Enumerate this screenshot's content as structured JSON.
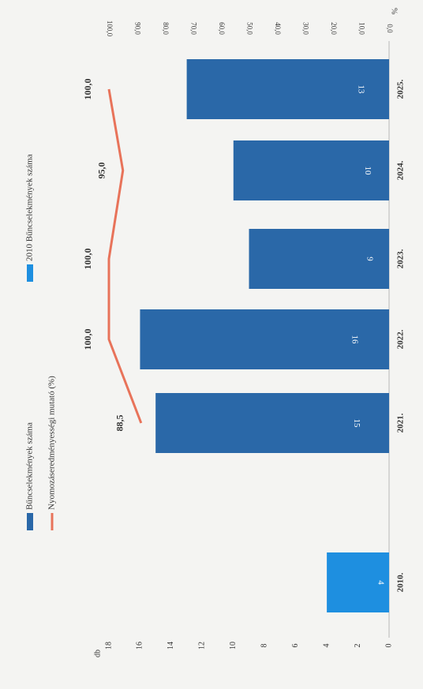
{
  "chart_data": {
    "type": "bar",
    "orientation": "rotated-90",
    "categories": [
      "2010.",
      "2021.",
      "2022.",
      "2023.",
      "2024.",
      "2025."
    ],
    "series": [
      {
        "name": "Bűncselekmények száma",
        "values": [
          null,
          15,
          16,
          9,
          10,
          13
        ],
        "color": "#2a68a8",
        "bar_labels": [
          "",
          "15",
          "16",
          "9",
          "10",
          "13"
        ]
      },
      {
        "name": "2010  Bűncselekmények száma",
        "values": [
          4,
          null,
          null,
          null,
          null,
          null
        ],
        "color": "#1e8fe0",
        "bar_labels": [
          "4",
          "",
          "",
          "",
          "",
          ""
        ]
      },
      {
        "name": "Nyomozáseredményességi mutató (%)",
        "type": "line",
        "axis": "right",
        "values": [
          null,
          88.5,
          100.0,
          100.0,
          95.0,
          100.0
        ],
        "point_labels": [
          "",
          "88,5",
          "100,0",
          "100,0",
          "95,0",
          "100,0"
        ],
        "color": "#e8735a"
      }
    ],
    "left_axis": {
      "unit_label": "db",
      "range": [
        0,
        18
      ],
      "ticks": [
        "0",
        "2",
        "4",
        "6",
        "8",
        "10",
        "12",
        "14",
        "16",
        "18"
      ]
    },
    "right_axis": {
      "unit_label": "%",
      "range": [
        0,
        100
      ],
      "ticks": [
        "0,0",
        "10,0",
        "20,0",
        "30,0",
        "40,0",
        "50,0",
        "60,0",
        "70,0",
        "80,0",
        "90,0",
        "100,0"
      ]
    },
    "legend_position": "left",
    "grid": false
  },
  "colors": {
    "background": "#f4f4f2",
    "axis": "#b8b8b8",
    "text": "#333333"
  }
}
